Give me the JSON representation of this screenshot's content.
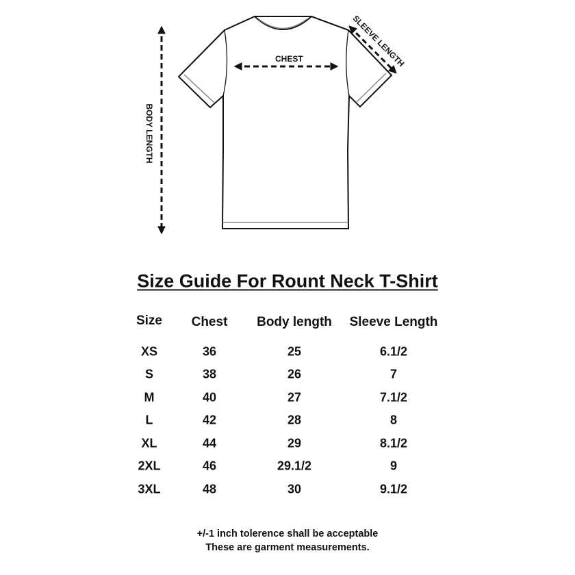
{
  "diagram": {
    "labels": {
      "chest": "CHEST",
      "sleeve_length": "SLEEVE LENGTH",
      "body_length": "BODY LENGTH"
    }
  },
  "title": "Size Guide For Rount Neck T-Shirt",
  "table": {
    "headers": [
      "Size",
      "Chest",
      "Body length",
      "Sleeve Length"
    ],
    "rows": [
      [
        "XS",
        "36",
        "25",
        "6.1/2"
      ],
      [
        "S",
        "38",
        "26",
        "7"
      ],
      [
        "M",
        "40",
        "27",
        "7.1/2"
      ],
      [
        "L",
        "42",
        "28",
        "8"
      ],
      [
        "XL",
        "44",
        "29",
        "8.1/2"
      ],
      [
        "2XL",
        "46",
        "29.1/2",
        "9"
      ],
      [
        "3XL",
        "48",
        "30",
        "9.1/2"
      ]
    ]
  },
  "footer": {
    "line1": "+/-1 inch tolerence shall be acceptable",
    "line2": "These are garment measurements."
  }
}
